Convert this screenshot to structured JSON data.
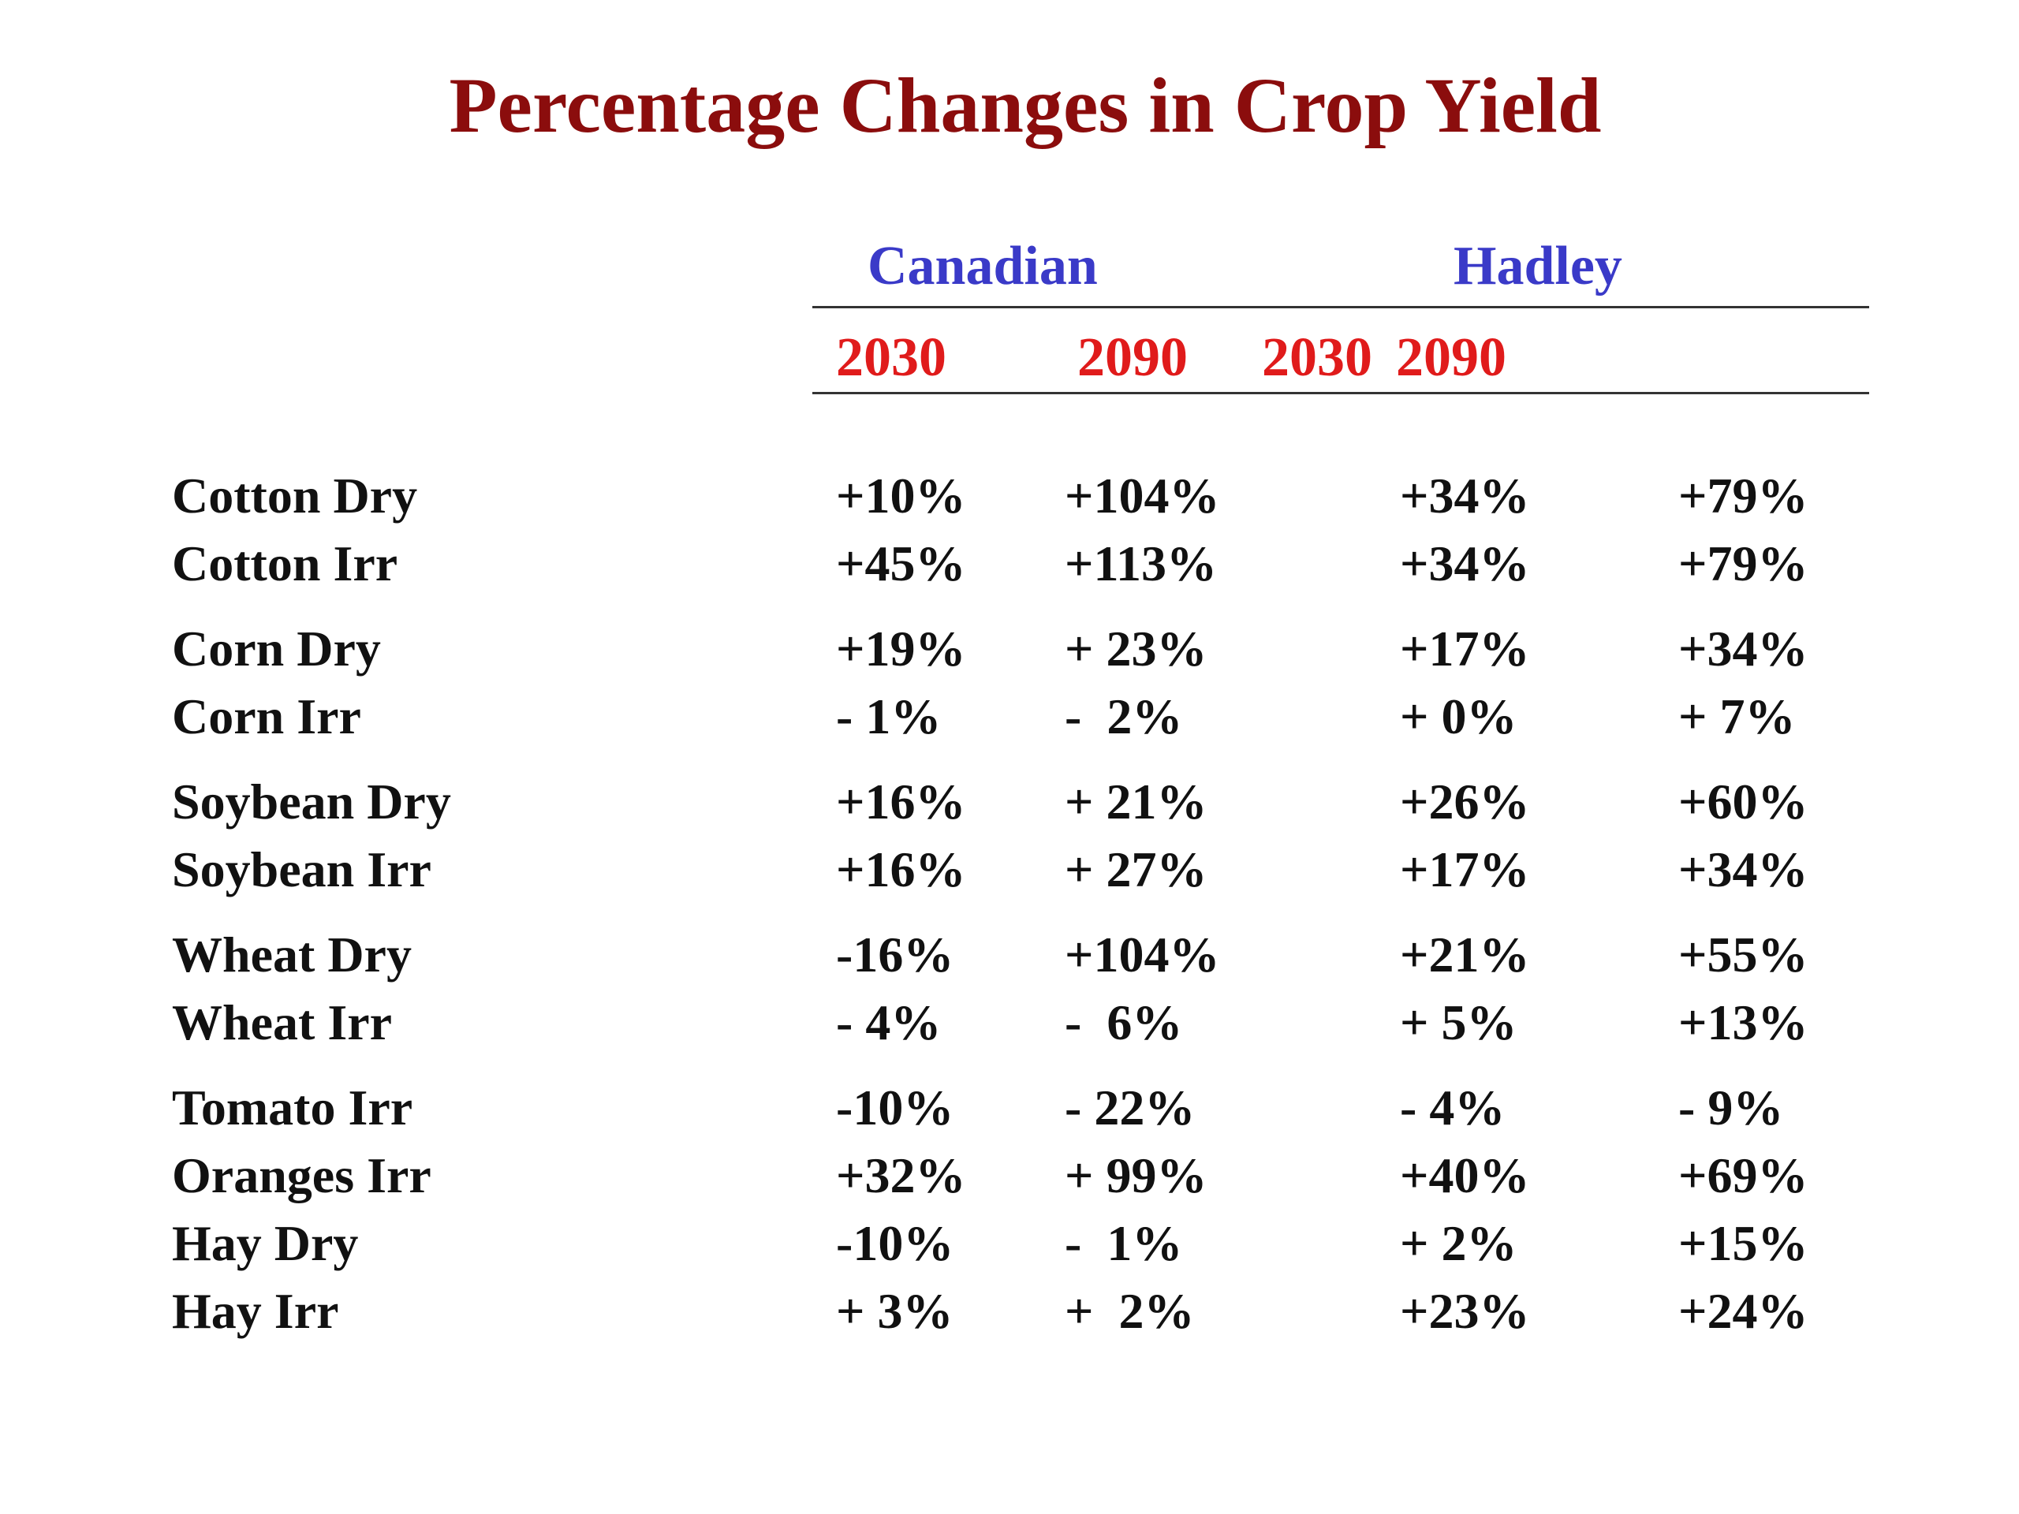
{
  "title": "Percentage Changes in Crop Yield",
  "models": [
    "Canadian",
    "Hadley"
  ],
  "years": [
    "2030",
    "2090",
    "2030",
    "2090"
  ],
  "rows": [
    {
      "crop": "Cotton Dry",
      "values": [
        "+10%",
        "+104%",
        "+34%",
        "+79%"
      ]
    },
    {
      "crop": "Cotton Irr",
      "values": [
        "+45%",
        "+113%",
        "+34%",
        "+79%"
      ]
    },
    {
      "crop": "Corn Dry",
      "values": [
        "+19%",
        "+ 23%",
        "+17%",
        "+34%"
      ]
    },
    {
      "crop": "Corn Irr",
      "values": [
        "- 1%",
        "-  2%",
        "+ 0%",
        "+ 7%"
      ]
    },
    {
      "crop": "Soybean Dry",
      "values": [
        "+16%",
        "+ 21%",
        "+26%",
        "+60%"
      ]
    },
    {
      "crop": "Soybean Irr",
      "values": [
        "+16%",
        "+ 27%",
        "+17%",
        "+34%"
      ]
    },
    {
      "crop": "Wheat Dry",
      "values": [
        "-16%",
        "+104%",
        "+21%",
        "+55%"
      ]
    },
    {
      "crop": "Wheat Irr",
      "values": [
        "- 4%",
        "-  6%",
        "+ 5%",
        "+13%"
      ]
    },
    {
      "crop": "Tomato Irr",
      "values": [
        "-10%",
        "- 22%",
        "- 4%",
        "- 9%"
      ]
    },
    {
      "crop": "Oranges Irr",
      "values": [
        "+32%",
        "+ 99%",
        "+40%",
        "+69%"
      ]
    },
    {
      "crop": "Hay Dry",
      "values": [
        "-10%",
        "-  1%",
        "+ 2%",
        "+15%"
      ]
    },
    {
      "crop": "Hay Irr",
      "values": [
        "+ 3%",
        "+  2%",
        "+23%",
        "+24%"
      ]
    }
  ]
}
